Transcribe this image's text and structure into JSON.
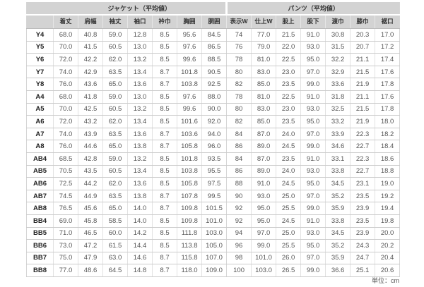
{
  "chart_data": {
    "type": "table",
    "groups": [
      "ジャケット（平均値）",
      "パンツ（平均値）"
    ],
    "jacket_columns": [
      "着丈",
      "肩幅",
      "袖丈",
      "袖口",
      "衿巾",
      "胸囲",
      "胴囲"
    ],
    "pants_columns": [
      "表示W",
      "仕上W",
      "股上",
      "股下",
      "渡巾",
      "膝巾",
      "裾口"
    ],
    "rows": [
      {
        "size": "Y4",
        "values": [
          "68.0",
          "40.8",
          "59.0",
          "12.8",
          "8.5",
          "95.6",
          "84.5",
          "74",
          "77.0",
          "21.5",
          "91.0",
          "30.8",
          "20.3",
          "17.0"
        ]
      },
      {
        "size": "Y5",
        "values": [
          "70.0",
          "41.5",
          "60.5",
          "13.0",
          "8.5",
          "97.6",
          "86.5",
          "76",
          "79.0",
          "22.0",
          "93.0",
          "31.5",
          "20.7",
          "17.2"
        ]
      },
      {
        "size": "Y6",
        "values": [
          "72.0",
          "42.2",
          "62.0",
          "13.2",
          "8.5",
          "99.6",
          "88.5",
          "78",
          "81.0",
          "22.5",
          "95.0",
          "32.2",
          "21.1",
          "17.4"
        ]
      },
      {
        "size": "Y7",
        "values": [
          "74.0",
          "42.9",
          "63.5",
          "13.4",
          "8.7",
          "101.8",
          "90.5",
          "80",
          "83.0",
          "23.0",
          "97.0",
          "32.9",
          "21.5",
          "17.6"
        ]
      },
      {
        "size": "Y8",
        "values": [
          "76.0",
          "43.6",
          "65.0",
          "13.6",
          "8.7",
          "103.8",
          "92.5",
          "82",
          "85.0",
          "23.5",
          "99.0",
          "33.6",
          "21.9",
          "17.8"
        ]
      },
      {
        "size": "A4",
        "values": [
          "68.0",
          "41.8",
          "59.0",
          "13.0",
          "8.5",
          "97.6",
          "88.0",
          "78",
          "81.0",
          "22.5",
          "91.0",
          "31.8",
          "21.1",
          "17.6"
        ]
      },
      {
        "size": "A5",
        "values": [
          "70.0",
          "42.5",
          "60.5",
          "13.2",
          "8.5",
          "99.6",
          "90.0",
          "80",
          "83.0",
          "23.0",
          "93.0",
          "32.5",
          "21.5",
          "17.8"
        ]
      },
      {
        "size": "A6",
        "values": [
          "72.0",
          "43.2",
          "62.0",
          "13.4",
          "8.5",
          "101.6",
          "92.0",
          "82",
          "85.0",
          "23.5",
          "95.0",
          "33.2",
          "21.9",
          "18.0"
        ]
      },
      {
        "size": "A7",
        "values": [
          "74.0",
          "43.9",
          "63.5",
          "13.6",
          "8.7",
          "103.6",
          "94.0",
          "84",
          "87.0",
          "24.0",
          "97.0",
          "33.9",
          "22.3",
          "18.2"
        ]
      },
      {
        "size": "A8",
        "values": [
          "76.0",
          "44.6",
          "65.0",
          "13.8",
          "8.7",
          "105.8",
          "96.0",
          "86",
          "89.0",
          "24.5",
          "99.0",
          "34.6",
          "22.7",
          "18.4"
        ]
      },
      {
        "size": "AB4",
        "values": [
          "68.5",
          "42.8",
          "59.0",
          "13.2",
          "8.5",
          "101.8",
          "93.5",
          "84",
          "87.0",
          "23.5",
          "91.0",
          "33.1",
          "22.3",
          "18.6"
        ]
      },
      {
        "size": "AB5",
        "values": [
          "70.5",
          "43.5",
          "60.5",
          "13.4",
          "8.5",
          "103.8",
          "95.5",
          "86",
          "89.0",
          "24.0",
          "93.0",
          "33.8",
          "22.7",
          "18.8"
        ]
      },
      {
        "size": "AB6",
        "values": [
          "72.5",
          "44.2",
          "62.0",
          "13.6",
          "8.5",
          "105.8",
          "97.5",
          "88",
          "91.0",
          "24.5",
          "95.0",
          "34.5",
          "23.1",
          "19.0"
        ]
      },
      {
        "size": "AB7",
        "values": [
          "74.5",
          "44.9",
          "63.5",
          "13.8",
          "8.7",
          "107.8",
          "99.5",
          "90",
          "93.0",
          "25.0",
          "97.0",
          "35.2",
          "23.5",
          "19.2"
        ]
      },
      {
        "size": "AB8",
        "values": [
          "76.5",
          "45.6",
          "65.0",
          "14.0",
          "8.7",
          "109.8",
          "101.5",
          "92",
          "95.0",
          "25.5",
          "99.0",
          "35.9",
          "23.9",
          "19.4"
        ]
      },
      {
        "size": "BB4",
        "values": [
          "69.0",
          "45.8",
          "58.5",
          "14.0",
          "8.5",
          "109.8",
          "101.0",
          "92",
          "95.0",
          "24.5",
          "91.0",
          "33.8",
          "23.5",
          "19.8"
        ]
      },
      {
        "size": "BB5",
        "values": [
          "71.0",
          "46.5",
          "60.0",
          "14.2",
          "8.5",
          "111.8",
          "103.0",
          "94",
          "97.0",
          "25.0",
          "93.0",
          "34.5",
          "23.9",
          "20.0"
        ]
      },
      {
        "size": "BB6",
        "values": [
          "73.0",
          "47.2",
          "61.5",
          "14.4",
          "8.5",
          "113.8",
          "105.0",
          "96",
          "99.0",
          "25.5",
          "95.0",
          "35.2",
          "24.3",
          "20.2"
        ]
      },
      {
        "size": "BB7",
        "values": [
          "75.0",
          "47.9",
          "63.0",
          "14.6",
          "8.7",
          "115.8",
          "107.0",
          "98",
          "101.0",
          "26.0",
          "97.0",
          "35.9",
          "24.7",
          "20.4"
        ]
      },
      {
        "size": "BB8",
        "values": [
          "77.0",
          "48.6",
          "64.5",
          "14.8",
          "8.7",
          "118.0",
          "109.0",
          "100",
          "103.0",
          "26.5",
          "99.0",
          "36.6",
          "25.1",
          "20.6"
        ]
      }
    ],
    "unit_note": "単位：cm"
  },
  "colors": {
    "header_bg": "#d3d3d3",
    "header_text": "#333333",
    "data_text": "#555555",
    "row_border": "#cccccc",
    "column_border": "#e2e2e2"
  }
}
